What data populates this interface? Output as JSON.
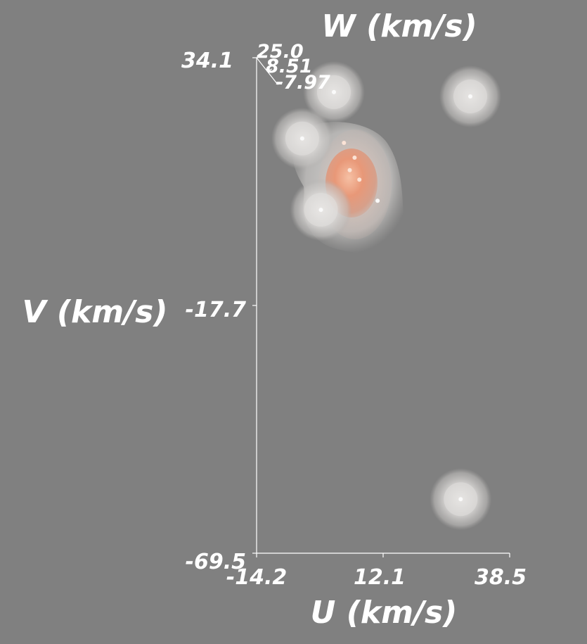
{
  "chart_data": {
    "type": "scatter",
    "title": "",
    "xlabel": "U (km/s)",
    "ylabel": "V (km/s)",
    "zlabel": "W (km/s)",
    "x_ticks": [
      "-14.2",
      "12.1",
      "38.5"
    ],
    "y_ticks": [
      "34.1",
      "-17.7",
      "-69.5"
    ],
    "z_ticks": [
      "25.0",
      "8.51",
      "-7.97"
    ],
    "xlim": [
      -14.2,
      38.5
    ],
    "ylim": [
      -69.5,
      34.1
    ],
    "render": "3d-isosurface",
    "colors": {
      "background": "#808080",
      "axis": "#ffffff",
      "halo": "#d8d6d4",
      "core": "#e89878"
    },
    "points": [
      {
        "u": 1.9,
        "v": 26.9,
        "size": "small",
        "density": "low"
      },
      {
        "u": 30.3,
        "v": 26.0,
        "size": "small",
        "density": "low"
      },
      {
        "u": -4.7,
        "v": 17.2,
        "size": "small",
        "density": "low"
      },
      {
        "u": 4.0,
        "v": 16.3,
        "size": "small",
        "density": "high"
      },
      {
        "u": 6.2,
        "v": 13.2,
        "size": "small",
        "density": "high"
      },
      {
        "u": 5.2,
        "v": 10.6,
        "size": "small",
        "density": "high"
      },
      {
        "u": 7.2,
        "v": 8.6,
        "size": "small",
        "density": "high"
      },
      {
        "u": 11.0,
        "v": 4.2,
        "size": "small",
        "density": "medium"
      },
      {
        "u": -0.8,
        "v": 2.3,
        "size": "small",
        "density": "low"
      },
      {
        "u": 28.3,
        "v": -58.2,
        "size": "small",
        "density": "low"
      }
    ]
  }
}
